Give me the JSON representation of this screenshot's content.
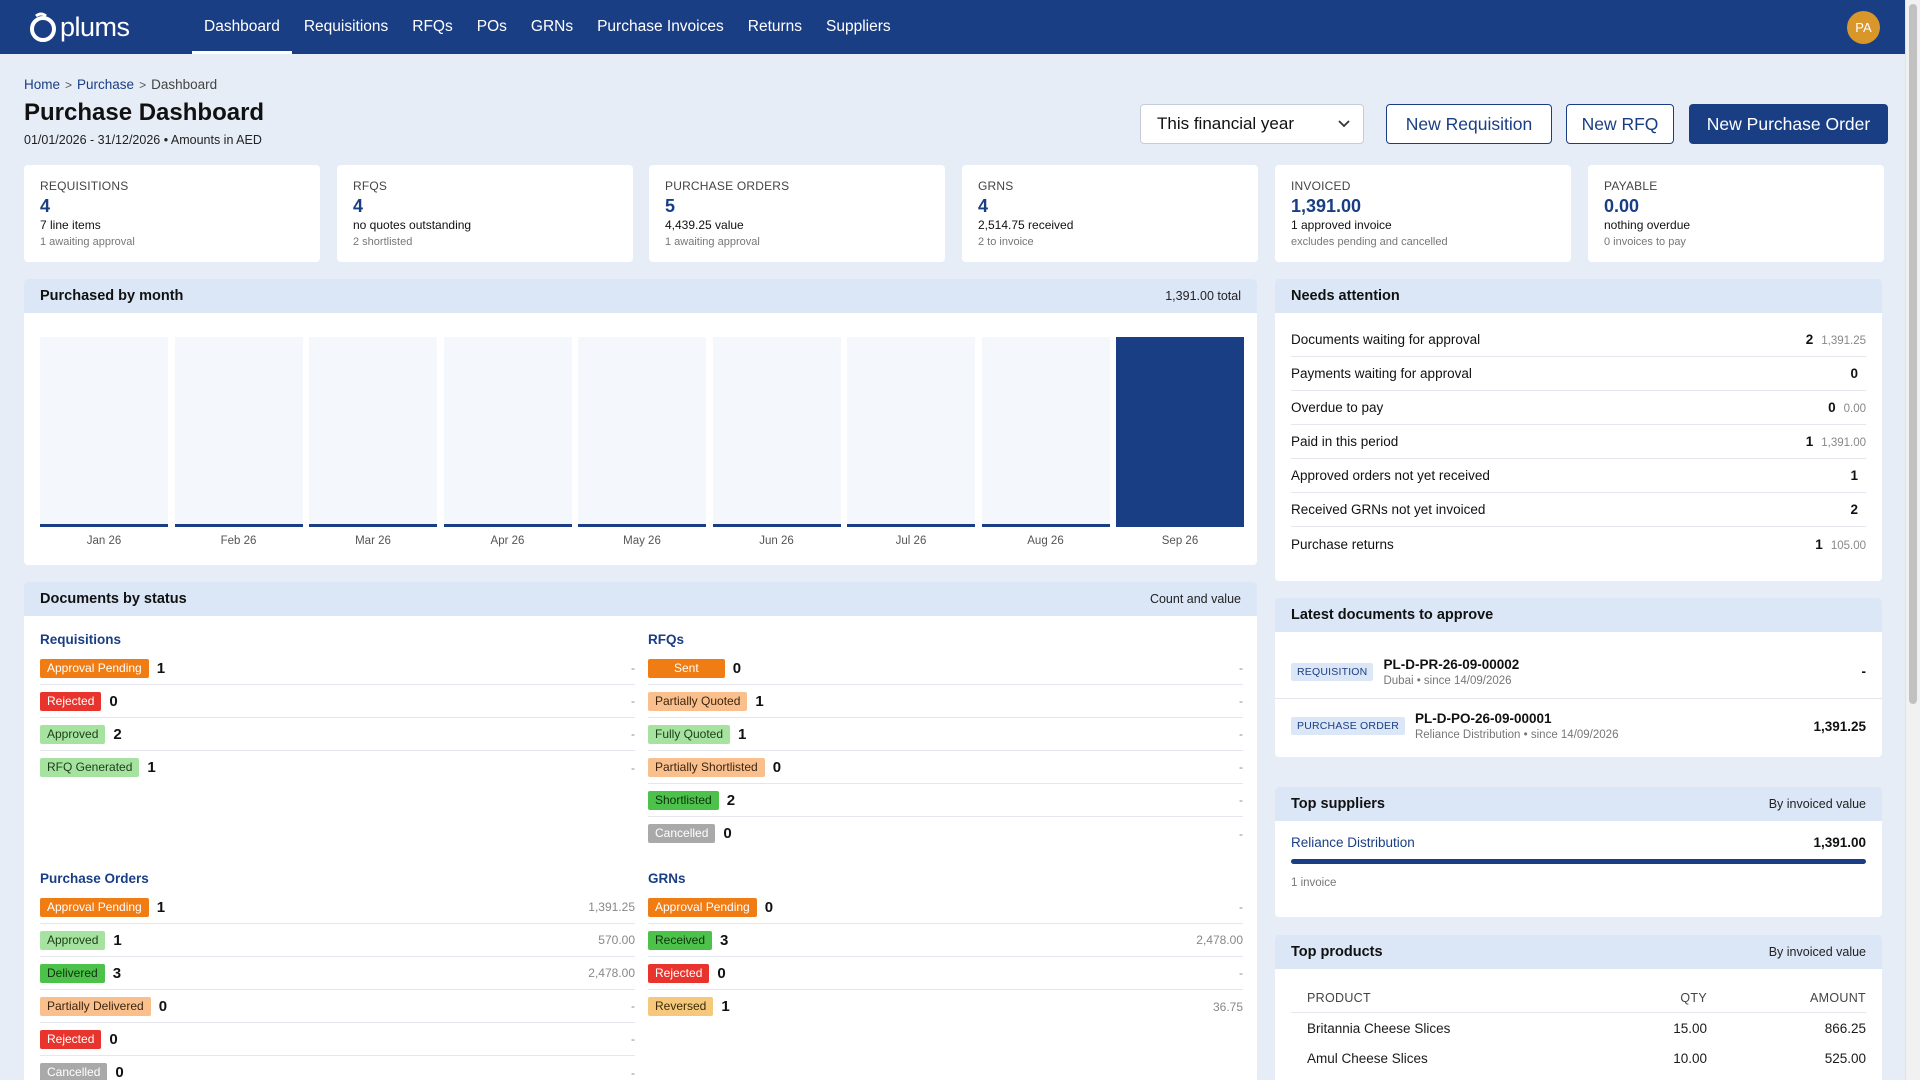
{
  "nav": {
    "logo_text": "plums",
    "links": [
      "Dashboard",
      "Requisitions",
      "RFQs",
      "POs",
      "GRNs",
      "Purchase Invoices",
      "Returns",
      "Suppliers"
    ],
    "active_index": 0,
    "avatar": "PA"
  },
  "breadcrumb": {
    "home": "Home",
    "purchase": "Purchase",
    "current": "Dashboard"
  },
  "header": {
    "title": "Purchase Dashboard",
    "subtitle": "01/01/2026 - 31/12/2026 • Amounts in AED",
    "period_select": "This financial year",
    "new_requisition": "New Requisition",
    "new_rfq": "New RFQ",
    "new_po": "New Purchase Order"
  },
  "stats": [
    {
      "label": "REQUISITIONS",
      "value": "4",
      "line": "7 line items",
      "note": "1 awaiting approval"
    },
    {
      "label": "RFQS",
      "value": "4",
      "line": "no quotes outstanding",
      "note": "2 shortlisted"
    },
    {
      "label": "PURCHASE ORDERS",
      "value": "5",
      "line": "4,439.25 value",
      "note": "1 awaiting approval"
    },
    {
      "label": "GRNS",
      "value": "4",
      "line": "2,514.75 received",
      "note": "2 to invoice"
    },
    {
      "label": "INVOICED",
      "value": "1,391.00",
      "line": "1 approved invoice",
      "note": "excludes pending and cancelled"
    },
    {
      "label": "PAYABLE",
      "value": "0.00",
      "line": "nothing overdue",
      "note": "0 invoices to pay"
    }
  ],
  "purchased": {
    "title": "Purchased by month",
    "total": "1,391.00 total"
  },
  "chart_data": {
    "type": "bar",
    "categories": [
      "Jan 26",
      "Feb 26",
      "Mar 26",
      "Apr 26",
      "May 26",
      "Jun 26",
      "Jul 26",
      "Aug 26",
      "Sep 26"
    ],
    "values": [
      0,
      0,
      0,
      0,
      0,
      0,
      0,
      0,
      1391.0
    ],
    "title": "Purchased by month",
    "xlabel": "",
    "ylabel": "",
    "grid": false
  },
  "attention": {
    "title": "Needs attention",
    "rows": [
      {
        "label": "Documents waiting for approval",
        "count": "2",
        "amount": "1,391.25"
      },
      {
        "label": "Payments waiting for approval",
        "count": "0",
        "amount": ""
      },
      {
        "label": "Overdue to pay",
        "count": "0",
        "amount": "0.00"
      },
      {
        "label": "Paid in this period",
        "count": "1",
        "amount": "1,391.00"
      },
      {
        "label": "Approved orders not yet received",
        "count": "1",
        "amount": ""
      },
      {
        "label": "Received GRNs not yet invoiced",
        "count": "2",
        "amount": ""
      },
      {
        "label": "Purchase returns",
        "count": "1",
        "amount": "105.00"
      }
    ]
  },
  "docs_status": {
    "title": "Documents by status",
    "meta": "Count and value",
    "requisitions": {
      "title": "Requisitions",
      "rows": [
        {
          "status": "Approval Pending",
          "count": "1",
          "value": "-",
          "color": "orange"
        },
        {
          "status": "Rejected",
          "count": "0",
          "value": "-",
          "color": "red"
        },
        {
          "status": "Approved",
          "count": "2",
          "value": "-",
          "color": "lgreen"
        },
        {
          "status": "RFQ Generated",
          "count": "1",
          "value": "-",
          "color": "lgreen"
        }
      ]
    },
    "rfqs": {
      "title": "RFQs",
      "rows": [
        {
          "status": "Sent",
          "count": "0",
          "value": "-",
          "color": "orange"
        },
        {
          "status": "Partially Quoted",
          "count": "1",
          "value": "-",
          "color": "peach"
        },
        {
          "status": "Fully Quoted",
          "count": "1",
          "value": "-",
          "color": "lgreen"
        },
        {
          "status": "Partially Shortlisted",
          "count": "0",
          "value": "-",
          "color": "peach"
        },
        {
          "status": "Shortlisted",
          "count": "2",
          "value": "-",
          "color": "green"
        },
        {
          "status": "Cancelled",
          "count": "0",
          "value": "-",
          "color": "gray"
        }
      ]
    },
    "pos": {
      "title": "Purchase Orders",
      "rows": [
        {
          "status": "Approval Pending",
          "count": "1",
          "value": "1,391.25",
          "color": "orange"
        },
        {
          "status": "Approved",
          "count": "1",
          "value": "570.00",
          "color": "lgreen"
        },
        {
          "status": "Delivered",
          "count": "3",
          "value": "2,478.00",
          "color": "green"
        },
        {
          "status": "Partially Delivered",
          "count": "0",
          "value": "-",
          "color": "peach"
        },
        {
          "status": "Rejected",
          "count": "0",
          "value": "-",
          "color": "red"
        },
        {
          "status": "Cancelled",
          "count": "0",
          "value": "-",
          "color": "gray"
        }
      ]
    },
    "grns": {
      "title": "GRNs",
      "rows": [
        {
          "status": "Approval Pending",
          "count": "0",
          "value": "-",
          "color": "orange"
        },
        {
          "status": "Received",
          "count": "3",
          "value": "2,478.00",
          "color": "green"
        },
        {
          "status": "Rejected",
          "count": "0",
          "value": "-",
          "color": "red"
        },
        {
          "status": "Reversed",
          "count": "1",
          "value": "36.75",
          "color": "yellow"
        }
      ]
    }
  },
  "latest": {
    "title": "Latest documents to approve",
    "rows": [
      {
        "tag": "REQUISITION",
        "id": "PL-D-PR-26-09-00002",
        "sub": "Dubai • since 14/09/2026",
        "amount": "-"
      },
      {
        "tag": "PURCHASE ORDER",
        "id": "PL-D-PO-26-09-00001",
        "sub": "Reliance Distribution • since 14/09/2026",
        "amount": "1,391.25"
      }
    ]
  },
  "suppliers": {
    "title": "Top suppliers",
    "meta": "By invoiced value",
    "rows": [
      {
        "name": "Reliance Distribution",
        "amount": "1,391.00",
        "share": 1.0,
        "note": "1 invoice"
      }
    ]
  },
  "products": {
    "title": "Top products",
    "meta": "By invoiced value",
    "headers": {
      "product": "PRODUCT",
      "qty": "QTY",
      "amount": "AMOUNT"
    },
    "rows": [
      {
        "product": "Britannia Cheese Slices",
        "qty": "15.00",
        "amount": "866.25"
      },
      {
        "product": "Amul Cheese Slices",
        "qty": "10.00",
        "amount": "525.00"
      }
    ]
  },
  "colors": {
    "brand": "#1a3e84",
    "accent_avatar": "#d9962b",
    "panel_head": "#dbe7f6"
  }
}
